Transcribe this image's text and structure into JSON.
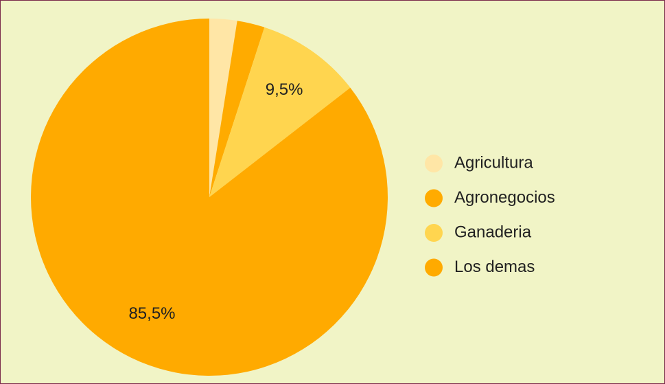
{
  "chart_data": {
    "type": "pie",
    "categories": [
      "Agricultura",
      "Agronegocios",
      "Ganaderia",
      "Los demas"
    ],
    "values": [
      2.5,
      2.5,
      9.5,
      85.5
    ],
    "value_labels": [
      null,
      null,
      "9,5%",
      "85,5%"
    ],
    "colors": [
      "#ffe6a6",
      "#ffab00",
      "#ffd54f",
      "#ffaa00"
    ],
    "legend": "right"
  }
}
